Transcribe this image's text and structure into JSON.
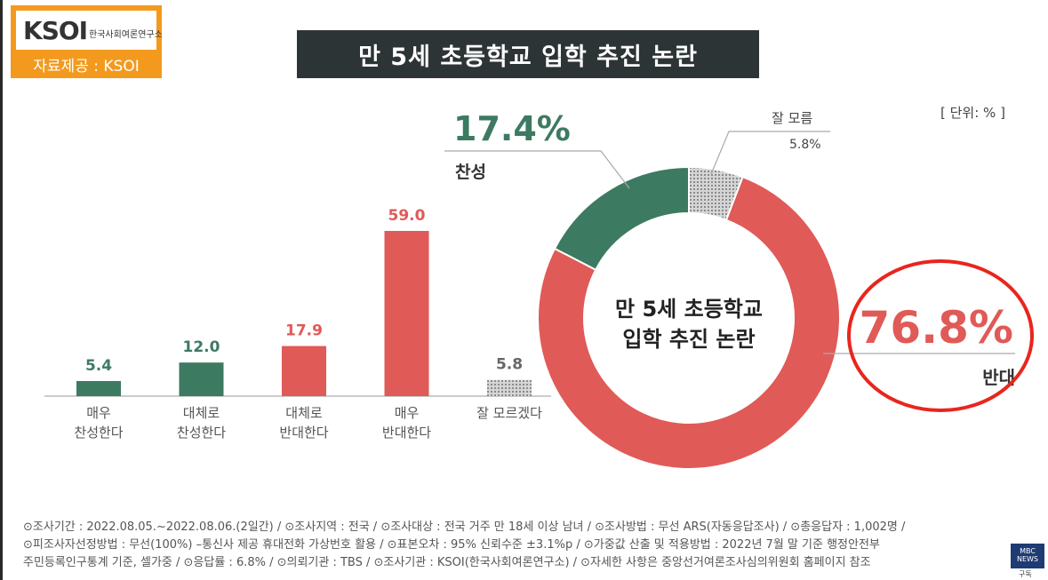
{
  "logo": {
    "mark": "KSOI",
    "subtitle": "한국사회여론연구소",
    "credit": "자료제공 : KSOI"
  },
  "title": "만 5세 초등학교 입학 추진 논란",
  "unit": "[ 단위: % ]",
  "colors": {
    "agree": "#3d7a62",
    "oppose": "#e05a57",
    "unsure": "#b8b8b8",
    "title_bg": "#2d3436",
    "logo": "#f39a1e"
  },
  "chart_data": [
    {
      "type": "bar",
      "categories": [
        "매우\n찬성한다",
        "대체로\n찬성한다",
        "대체로\n반대한다",
        "매우\n반대한다",
        "잘 모르겠다"
      ],
      "values": [
        5.4,
        12.0,
        17.9,
        59.0,
        5.8
      ],
      "value_labels": [
        "5.4",
        "12.0",
        "17.9",
        "59.0",
        "5.8"
      ],
      "bar_colors": [
        "#3d7a62",
        "#3d7a62",
        "#e05a57",
        "#e05a57",
        "#b8b8b8"
      ],
      "ylim": [
        0,
        59.0
      ],
      "grid": false
    },
    {
      "type": "pie",
      "donut": true,
      "center_label": [
        "만 5세 초등학교",
        "입학 추진 논란"
      ],
      "slices": [
        {
          "name": "찬성",
          "value": 17.4,
          "label": "17.4%",
          "color": "#3d7a62"
        },
        {
          "name": "잘 모름",
          "value": 5.8,
          "label": "5.8%",
          "color": "#b8b8b8"
        },
        {
          "name": "반대",
          "value": 76.8,
          "label": "76.8%",
          "color": "#e05a57"
        }
      ]
    }
  ],
  "footnotes": [
    "⊙조사기간 : 2022.08.05.~2022.08.06.(2일간) / ⊙조사지역 : 전국 / ⊙조사대상 : 전국 거주 만 18세 이상 남녀 / ⊙조사방법 : 무선 ARS(자동응답조사) / ⊙총응답자 : 1,002명 /",
    "⊙피조사자선정방법 : 무선(100%) –통신사 제공 휴대전화 가상번호 활용 / ⊙표본오차 : 95% 신뢰수준 ±3.1%p / ⊙가중값 산출 및 적용방법 : 2022년 7월 말 기준 행정안전부",
    "주민등록인구통계 기준, 셀가중 / ⊙응답률 : 6.8% / ⊙의뢰기관 : TBS / ⊙조사기관 : KSOI(한국사회여론연구소) / ⊙자세한 사항은 중앙선거여론조사심의위원회 홈페이지 참조"
  ],
  "watermark": {
    "brand": "MBC NEWS",
    "sub": "구독"
  }
}
